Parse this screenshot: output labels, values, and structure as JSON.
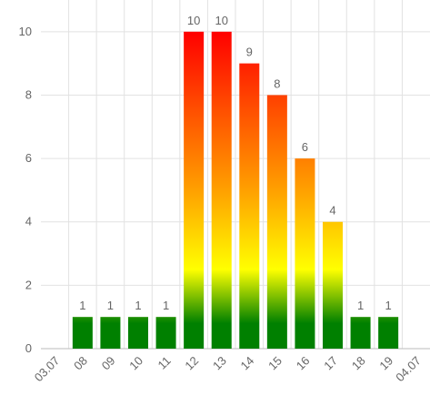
{
  "chart_data": {
    "type": "bar",
    "categories": [
      "03.07",
      "08",
      "09",
      "10",
      "11",
      "12",
      "13",
      "14",
      "15",
      "16",
      "17",
      "18",
      "19",
      "04.07"
    ],
    "values": [
      null,
      1,
      1,
      1,
      1,
      10,
      10,
      9,
      8,
      6,
      4,
      1,
      1,
      null
    ],
    "ylim": [
      0,
      11
    ],
    "yticks": [
      0,
      2,
      4,
      6,
      8,
      10
    ],
    "grid": true
  }
}
